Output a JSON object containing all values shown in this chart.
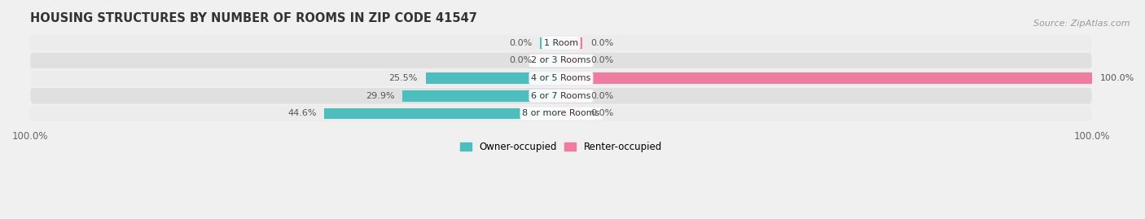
{
  "title": "HOUSING STRUCTURES BY NUMBER OF ROOMS IN ZIP CODE 41547",
  "source": "Source: ZipAtlas.com",
  "categories": [
    "1 Room",
    "2 or 3 Rooms",
    "4 or 5 Rooms",
    "6 or 7 Rooms",
    "8 or more Rooms"
  ],
  "owner_occupied": [
    0.0,
    0.0,
    25.5,
    29.9,
    44.6
  ],
  "renter_occupied": [
    0.0,
    0.0,
    100.0,
    0.0,
    0.0
  ],
  "owner_color": "#4DBDBD",
  "renter_color": "#F07BA0",
  "bg_color": "#f0f0f0",
  "row_bg_light": "#ececec",
  "row_bg_dark": "#e0e0e0",
  "title_fontsize": 10.5,
  "source_fontsize": 8,
  "tick_fontsize": 8.5,
  "label_fontsize": 8,
  "category_fontsize": 8,
  "xlim_left": -100,
  "xlim_right": 100,
  "legend_labels": [
    "Owner-occupied",
    "Renter-occupied"
  ],
  "small_bar_owner": 4.0,
  "small_bar_renter": 4.0
}
